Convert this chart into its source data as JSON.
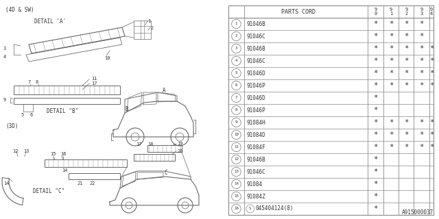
{
  "bg_color": "#ffffff",
  "col_header": "PARTS CORD",
  "year_cols": [
    "9\n0",
    "9\n1",
    "9\n2",
    "9\n3",
    "9\n4"
  ],
  "rows": [
    {
      "num": 1,
      "part": "91046B",
      "stars": [
        1,
        1,
        1,
        1,
        0
      ]
    },
    {
      "num": 2,
      "part": "91046C",
      "stars": [
        1,
        1,
        1,
        1,
        0
      ]
    },
    {
      "num": 3,
      "part": "91046B",
      "stars": [
        1,
        1,
        1,
        1,
        1
      ]
    },
    {
      "num": 4,
      "part": "91046C",
      "stars": [
        1,
        1,
        1,
        1,
        1
      ]
    },
    {
      "num": 5,
      "part": "91046D",
      "stars": [
        1,
        1,
        1,
        1,
        1
      ]
    },
    {
      "num": 6,
      "part": "91046P",
      "stars": [
        1,
        1,
        1,
        1,
        1
      ]
    },
    {
      "num": 7,
      "part": "91046D",
      "stars": [
        1,
        0,
        0,
        0,
        0
      ]
    },
    {
      "num": 8,
      "part": "91046P",
      "stars": [
        1,
        0,
        0,
        0,
        0
      ]
    },
    {
      "num": 9,
      "part": "91084H",
      "stars": [
        1,
        1,
        1,
        1,
        1
      ]
    },
    {
      "num": 10,
      "part": "91084D",
      "stars": [
        1,
        1,
        1,
        1,
        1
      ]
    },
    {
      "num": 11,
      "part": "91084F",
      "stars": [
        1,
        1,
        1,
        1,
        1
      ]
    },
    {
      "num": 12,
      "part": "91046B",
      "stars": [
        1,
        0,
        0,
        0,
        0
      ]
    },
    {
      "num": 13,
      "part": "91046C",
      "stars": [
        1,
        0,
        0,
        0,
        0
      ]
    },
    {
      "num": 14,
      "part": "91084",
      "stars": [
        1,
        0,
        0,
        0,
        0
      ]
    },
    {
      "num": 15,
      "part": "91084Z",
      "stars": [
        1,
        0,
        0,
        0,
        0
      ]
    },
    {
      "num": 16,
      "part": "045404124(8)",
      "stars": [
        1,
        0,
        0,
        0,
        0
      ]
    }
  ],
  "footer": "A915000037",
  "line_color": "#888888",
  "text_color": "#333333",
  "diag_line_color": "#666666"
}
